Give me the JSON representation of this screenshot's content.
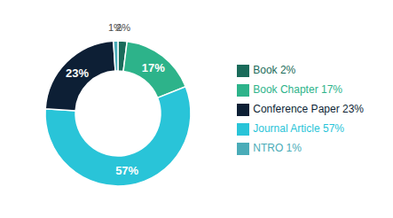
{
  "chart_data": {
    "type": "pie",
    "categories": [
      "Book 2%",
      "Book Chapter 17%",
      "Journal Article 57%",
      "Conference Paper 23%",
      "NTRO 1%"
    ],
    "values": [
      2,
      17,
      57,
      23,
      1
    ],
    "value_labels": [
      "2%",
      "17%",
      "57%",
      "23%",
      "1%"
    ],
    "colors": [
      "#1a6b5a",
      "#2db38a",
      "#29c4d8",
      "#0d1f35",
      "#4aacb8"
    ],
    "data_labels": true,
    "legend": "right"
  }
}
